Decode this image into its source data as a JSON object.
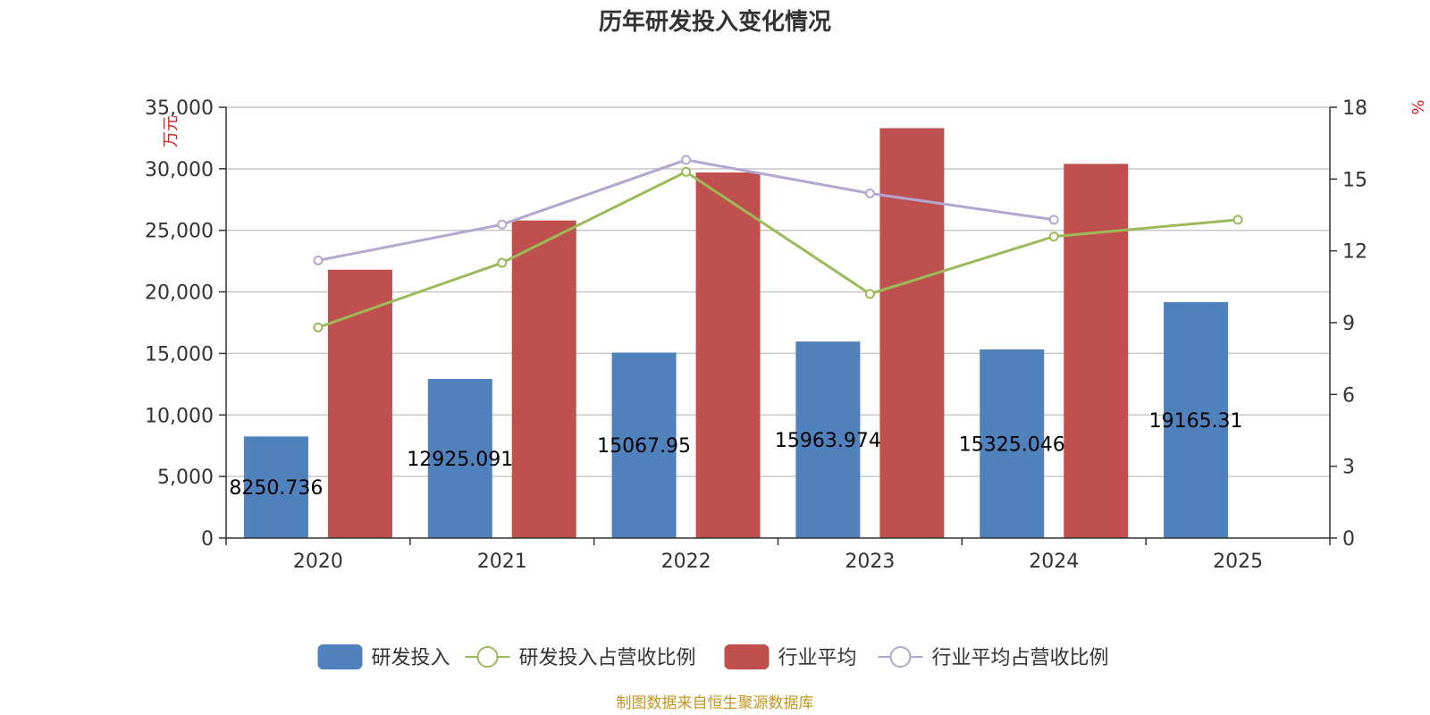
{
  "chart_data": {
    "type": "bar",
    "title": "历年研发投入变化情况",
    "categories": [
      "2020",
      "2021",
      "2022",
      "2023",
      "2024",
      "2025"
    ],
    "y_left": {
      "unit": "万元",
      "ylim": [
        0,
        35000
      ],
      "ticks": [
        "0",
        "5,000",
        "10,000",
        "15,000",
        "20,000",
        "25,000",
        "30,000",
        "35,000"
      ]
    },
    "y_right": {
      "unit": "%",
      "ylim": [
        0,
        18
      ],
      "ticks": [
        "0",
        "3",
        "6",
        "9",
        "12",
        "15",
        "18"
      ]
    },
    "grid": true,
    "legend_position": "bottom",
    "series": [
      {
        "name": "研发投入",
        "type": "bar",
        "axis": "left",
        "color": "#4f81bd",
        "values": [
          8250.736,
          12925.091,
          15067.95,
          15963.974,
          15325.046,
          19165.31
        ],
        "labels": [
          "8250.736",
          "12925.091",
          "15067.95",
          "15963.974",
          "15325.046",
          "19165.31"
        ]
      },
      {
        "name": "研发投入占营收比例",
        "type": "line",
        "axis": "right",
        "color": "#9bbb59",
        "values": [
          8.8,
          11.5,
          15.3,
          10.2,
          12.6,
          13.3
        ]
      },
      {
        "name": "行业平均",
        "type": "bar",
        "axis": "left",
        "color": "#c0504d",
        "values": [
          21800,
          25800,
          29700,
          33300,
          30400,
          null
        ]
      },
      {
        "name": "行业平均占营收比例",
        "type": "line",
        "axis": "right",
        "color": "#b3a7cf",
        "values": [
          11.6,
          13.1,
          15.8,
          14.4,
          13.3,
          null
        ]
      }
    ]
  },
  "source": {
    "text": "制图数据来自恒生聚源数据库",
    "color": "#c8961e"
  }
}
